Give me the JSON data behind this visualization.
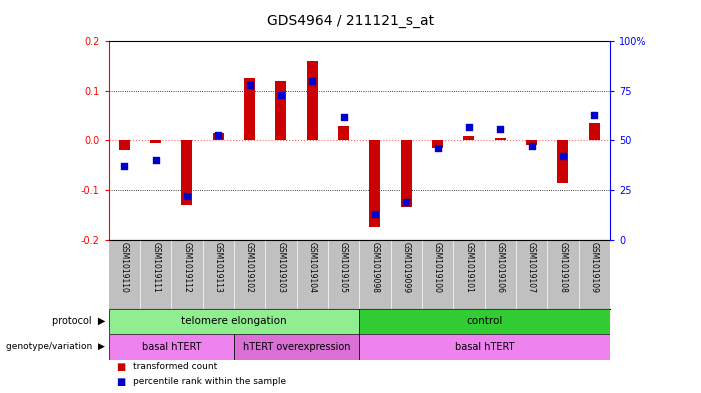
{
  "title": "GDS4964 / 211121_s_at",
  "samples": [
    "GSM1019110",
    "GSM1019111",
    "GSM1019112",
    "GSM1019113",
    "GSM1019102",
    "GSM1019103",
    "GSM1019104",
    "GSM1019105",
    "GSM1019098",
    "GSM1019099",
    "GSM1019100",
    "GSM1019101",
    "GSM1019106",
    "GSM1019107",
    "GSM1019108",
    "GSM1019109"
  ],
  "red_values": [
    -0.02,
    -0.005,
    -0.13,
    0.015,
    0.125,
    0.12,
    0.16,
    0.03,
    -0.175,
    -0.135,
    -0.015,
    0.01,
    0.005,
    -0.01,
    -0.085,
    0.035
  ],
  "blue_values_pct": [
    37,
    40,
    22,
    53,
    78,
    73,
    80,
    62,
    13,
    19,
    46,
    57,
    56,
    47,
    42,
    63
  ],
  "ylim_left": [
    -0.2,
    0.2
  ],
  "ylim_right": [
    0,
    100
  ],
  "yticks_left": [
    -0.2,
    -0.1,
    0.0,
    0.1,
    0.2
  ],
  "yticks_right": [
    0,
    25,
    50,
    75,
    100
  ],
  "protocol_telo_color": "#90EE90",
  "protocol_ctrl_color": "#32CD32",
  "genotype_basal_color": "#EE82EE",
  "genotype_over_color": "#DA70D6",
  "bar_color": "#CC0000",
  "dot_color": "#0000CC",
  "zero_line_color": "#FF6666",
  "grid_color": "#000000",
  "bg_color": "#FFFFFF",
  "label_bg_color": "#C0C0C0",
  "bar_width": 0.35,
  "dot_size": 18
}
